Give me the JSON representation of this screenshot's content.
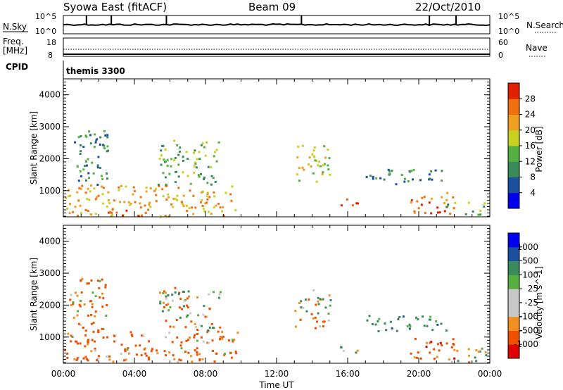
{
  "header": {
    "station": "Syowa East (fitACF)",
    "beam": "Beam 09",
    "date": "22/Oct/2010"
  },
  "strip_panels": {
    "nsky_label": "N.Sky",
    "nsky_ticks": [
      "10^5",
      "10^0"
    ],
    "nsearch_label": "N.Search",
    "nsearch_ticks": [
      "10^5",
      "10^0"
    ],
    "freq_label_1": "Freq.",
    "freq_label_2": "[MHz]",
    "freq_ticks": [
      "18",
      "8"
    ],
    "nave_label": "Nave",
    "nave_ticks": [
      "60",
      "0"
    ],
    "cpid_label": "CPID",
    "cpid_value": "themis 3300"
  },
  "colors": {
    "power": [
      "#0000ee",
      "#1b4fa0",
      "#3a8a5a",
      "#55b040",
      "#c8d020",
      "#f0a020",
      "#f07010",
      "#e02000"
    ],
    "velocity": [
      "#e00000",
      "#f05000",
      "#f09020",
      "#c8c8c8",
      "#c8c8c8",
      "#55b040",
      "#3a8a5a",
      "#1b4fa0",
      "#0000ee"
    ]
  },
  "chart_data": [
    {
      "type": "heatmap",
      "panel": "power",
      "ylabel": "Slant Range [km]",
      "ylim": [
        180,
        4500
      ],
      "yticks": [
        "1000",
        "2000",
        "3000",
        "4000"
      ],
      "xlim": [
        "00:00",
        "24:00"
      ],
      "colorbar_label": "Power [dB]",
      "colorbar_ticks": [
        "4",
        "8",
        "12",
        "16",
        "20",
        "24",
        "28"
      ],
      "clim": [
        0,
        32
      ],
      "echo_regions": [
        {
          "t0": 0.0,
          "t1": 9.8,
          "r0": 200,
          "r1": 1200,
          "power": 20
        },
        {
          "t0": 0.3,
          "t1": 2.5,
          "r0": 1200,
          "r1": 2900,
          "power": 8
        },
        {
          "t0": 2.5,
          "t1": 4.5,
          "r0": 200,
          "r1": 500,
          "power": 29
        },
        {
          "t0": 5.3,
          "t1": 8.8,
          "r0": 1200,
          "r1": 2600,
          "power": 12
        },
        {
          "t0": 13.0,
          "t1": 15.0,
          "r0": 1300,
          "r1": 2500,
          "power": 16
        },
        {
          "t0": 15.5,
          "t1": 16.6,
          "r0": 500,
          "r1": 800,
          "power": 28
        },
        {
          "t0": 17.0,
          "t1": 21.5,
          "r0": 1200,
          "r1": 1700,
          "power": 8
        },
        {
          "t0": 19.5,
          "t1": 22.0,
          "r0": 300,
          "r1": 1000,
          "power": 24
        },
        {
          "t0": 21.5,
          "t1": 23.8,
          "r0": 200,
          "r1": 700,
          "power": 12
        }
      ]
    },
    {
      "type": "heatmap",
      "panel": "velocity",
      "ylabel": "Slant Range [km]",
      "ylim": [
        180,
        4500
      ],
      "yticks": [
        "1000",
        "2000",
        "3000",
        "4000"
      ],
      "xlim": [
        "00:00",
        "24:00"
      ],
      "xticks": [
        "00:00",
        "04:00",
        "08:00",
        "12:00",
        "16:00",
        "20:00",
        "00:00"
      ],
      "xlabel": "Time UT",
      "colorbar_label": "Velocity [m s^-1]",
      "colorbar_ticks": [
        "1000",
        "500",
        "100",
        "25",
        "-25",
        "-100",
        "-500",
        "-1000"
      ],
      "echo_regions": [
        {
          "t0": 0.0,
          "t1": 9.8,
          "r0": 200,
          "r1": 1200,
          "velocity": -200
        },
        {
          "t0": 0.3,
          "t1": 2.5,
          "r0": 1200,
          "r1": 2900,
          "velocity": -150
        },
        {
          "t0": 5.3,
          "t1": 8.8,
          "r0": 1200,
          "r1": 2600,
          "velocity": 0
        },
        {
          "t0": 13.0,
          "t1": 15.0,
          "r0": 1300,
          "r1": 2500,
          "velocity": 0
        },
        {
          "t0": 15.5,
          "t1": 16.6,
          "r0": 500,
          "r1": 800,
          "velocity": 150
        },
        {
          "t0": 17.0,
          "t1": 21.5,
          "r0": 1200,
          "r1": 1700,
          "velocity": 300
        },
        {
          "t0": 19.5,
          "t1": 22.0,
          "r0": 300,
          "r1": 1000,
          "velocity": -300
        },
        {
          "t0": 21.5,
          "t1": 23.8,
          "r0": 200,
          "r1": 700,
          "velocity": 50
        }
      ]
    }
  ]
}
